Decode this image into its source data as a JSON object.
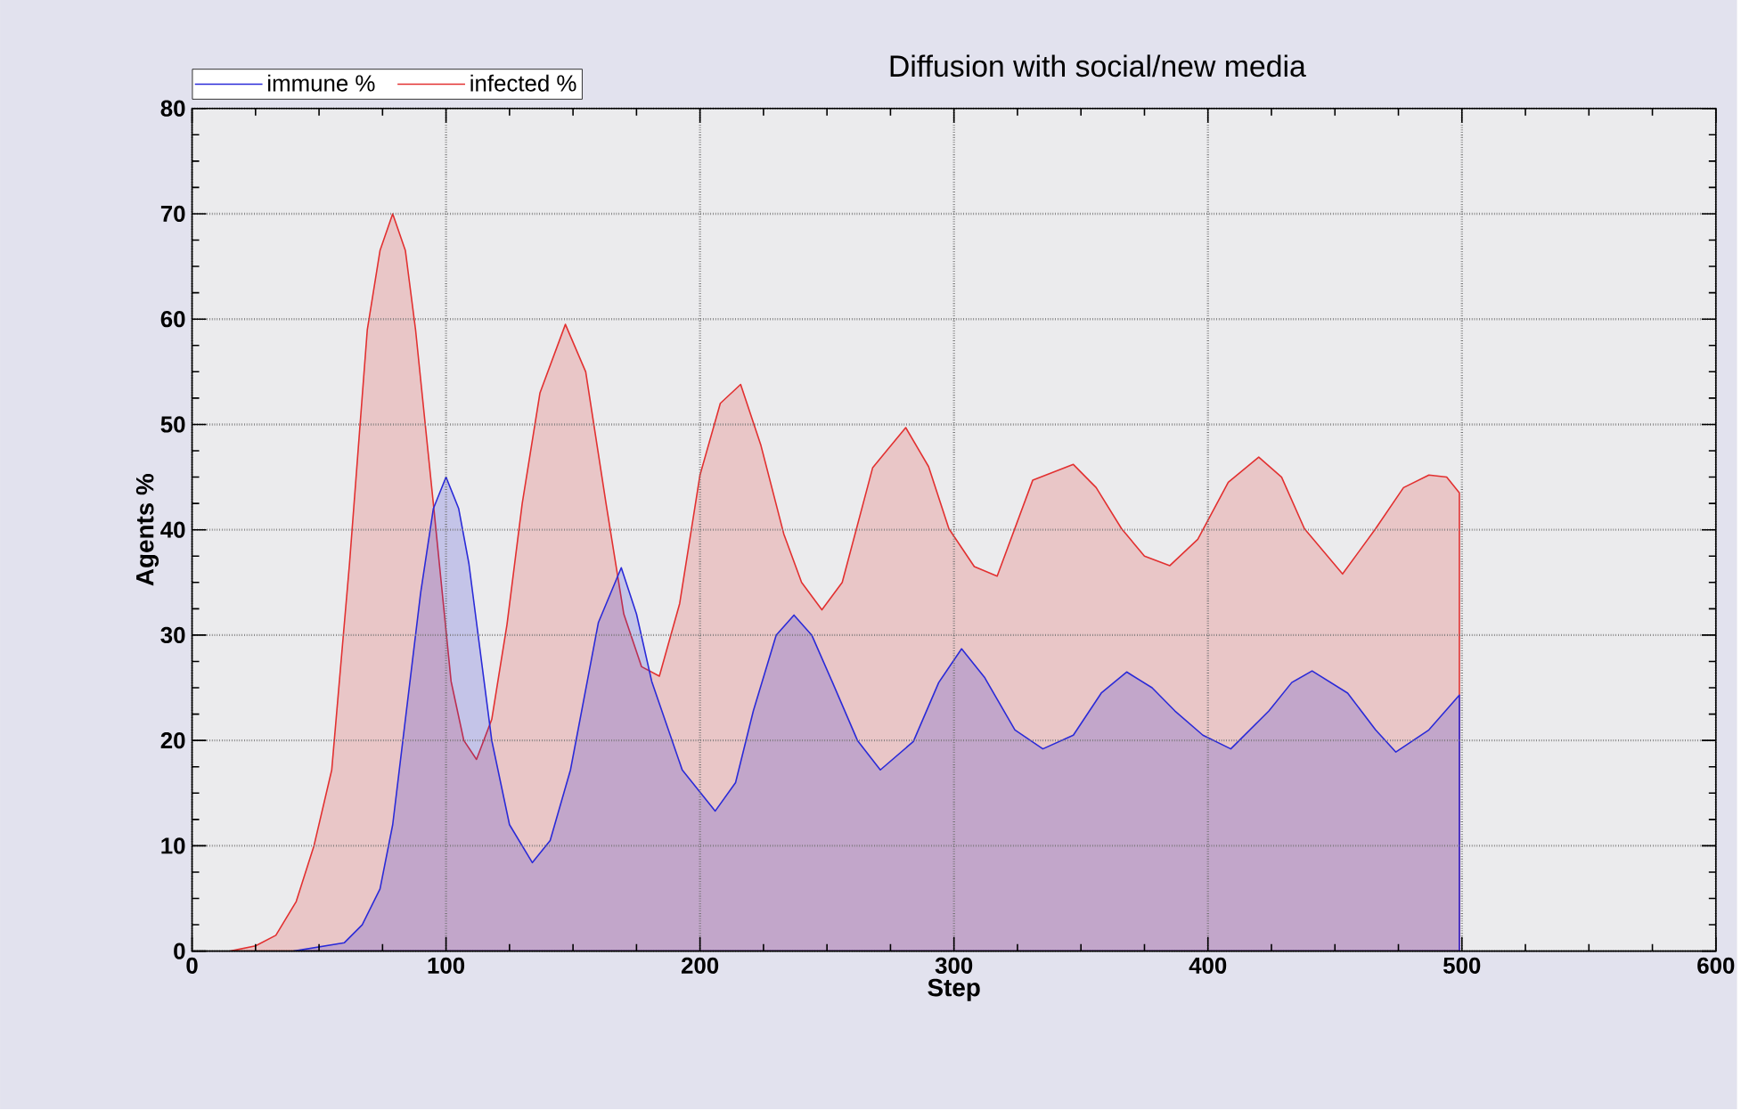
{
  "chart_data": {
    "type": "area",
    "title": "Diffusion with social/new media",
    "xlabel": "Step",
    "ylabel": "Agents %",
    "xlim": [
      0,
      600
    ],
    "xticks": [
      0,
      100,
      200,
      300,
      400,
      500,
      600
    ],
    "ylim": [
      0,
      80
    ],
    "yticks": [
      0,
      10,
      20,
      30,
      40,
      50,
      60,
      70,
      80
    ],
    "grid": true,
    "legend": "top left",
    "marker": "none",
    "line_style": "solid",
    "series": [
      {
        "name": "immune %",
        "color": "#2a2ad8",
        "x": [
          40,
          60,
          67,
          74,
          79,
          83,
          90,
          95,
          100,
          105,
          109,
          118,
          125,
          134,
          141,
          149,
          160,
          169,
          175,
          181,
          193,
          206,
          214,
          221,
          230,
          237,
          244,
          252,
          262,
          271,
          284,
          294,
          303,
          312,
          324,
          335,
          347,
          358,
          368,
          378,
          387,
          398,
          409,
          424,
          433,
          441,
          455,
          466,
          474,
          487,
          499
        ],
        "values": [
          0,
          0.8,
          2.5,
          5.9,
          12,
          20,
          34,
          42,
          45,
          42,
          36.8,
          20,
          12,
          8.4,
          10.5,
          17.2,
          31.2,
          36.4,
          32,
          25.6,
          17.2,
          13.3,
          16,
          22.8,
          30,
          31.9,
          30,
          25.6,
          20,
          17.2,
          19.9,
          25.5,
          28.7,
          26,
          21,
          19.2,
          20.5,
          24.5,
          26.5,
          25,
          22.8,
          20.5,
          19.2,
          22.8,
          25.5,
          26.6,
          24.5,
          21,
          18.9,
          21,
          24.3
        ]
      },
      {
        "name": "infected %",
        "color": "#e23030",
        "x": [
          15,
          25,
          33,
          41,
          48,
          55,
          62,
          69,
          74,
          79,
          84,
          88,
          95,
          102,
          107,
          112,
          118,
          124,
          130,
          137,
          147,
          155,
          163,
          170,
          177,
          184,
          192,
          200,
          208,
          216,
          224,
          233,
          240,
          248,
          256,
          268,
          281,
          290,
          298,
          308,
          317,
          331,
          347,
          356,
          366,
          375,
          385,
          396,
          408,
          420,
          429,
          438,
          453,
          466,
          477,
          487,
          494,
          499
        ],
        "values": [
          0,
          0.5,
          1.5,
          4.7,
          10,
          17.2,
          36.8,
          59,
          66.5,
          70,
          66.5,
          59,
          42.5,
          25.6,
          20,
          18.2,
          22,
          31,
          42.5,
          53,
          59.5,
          55,
          42.5,
          32,
          27,
          26.1,
          33,
          45.2,
          52,
          53.8,
          48,
          39.6,
          35,
          32.4,
          35,
          45.9,
          49.7,
          46,
          40.1,
          36.5,
          35.6,
          44.7,
          46.2,
          44,
          40.1,
          37.5,
          36.6,
          39.1,
          44.5,
          46.9,
          45,
          40.1,
          35.8,
          40.1,
          44,
          45.2,
          45,
          43.5
        ]
      }
    ]
  }
}
